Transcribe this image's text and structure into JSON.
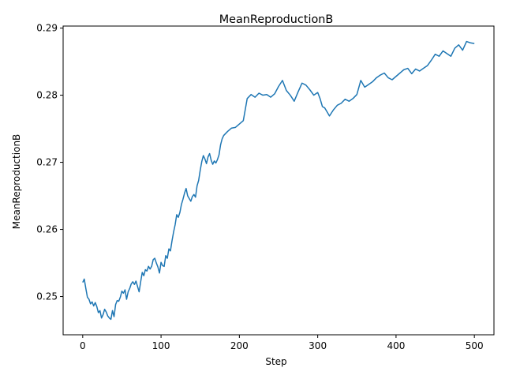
{
  "chart_data": {
    "type": "line",
    "title": "MeanReproductionB",
    "xlabel": "Step",
    "ylabel": "MeanReproductionB",
    "xlim": [
      -25,
      525
    ],
    "ylim": [
      0.2443,
      0.2903
    ],
    "xticks": [
      0,
      100,
      200,
      300,
      400,
      500
    ],
    "xtick_labels": [
      "0",
      "100",
      "200",
      "300",
      "400",
      "500"
    ],
    "yticks": [
      0.25,
      0.26,
      0.27,
      0.28,
      0.29
    ],
    "ytick_labels": [
      "0.25",
      "0.26",
      "0.27",
      "0.28",
      "0.29"
    ],
    "grid": false,
    "series": [
      {
        "color": "#1f77b4",
        "x": [
          0,
          2,
          4,
          6,
          8,
          10,
          12,
          14,
          16,
          18,
          20,
          22,
          24,
          26,
          28,
          30,
          32,
          34,
          36,
          38,
          40,
          42,
          44,
          46,
          48,
          50,
          52,
          54,
          56,
          58,
          60,
          62,
          64,
          66,
          68,
          70,
          72,
          74,
          76,
          78,
          80,
          82,
          84,
          86,
          88,
          90,
          92,
          94,
          96,
          98,
          100,
          102,
          104,
          106,
          108,
          110,
          112,
          114,
          116,
          118,
          120,
          122,
          124,
          126,
          128,
          130,
          132,
          134,
          136,
          138,
          140,
          142,
          144,
          146,
          148,
          150,
          152,
          154,
          156,
          158,
          160,
          162,
          164,
          166,
          168,
          170,
          172,
          174,
          176,
          178,
          180,
          185,
          190,
          195,
          200,
          205,
          210,
          215,
          220,
          225,
          230,
          235,
          240,
          245,
          250,
          255,
          260,
          265,
          270,
          275,
          280,
          285,
          290,
          295,
          300,
          303,
          306,
          309,
          312,
          315,
          320,
          325,
          330,
          335,
          340,
          345,
          350,
          355,
          360,
          365,
          370,
          375,
          380,
          385,
          390,
          395,
          400,
          405,
          410,
          415,
          420,
          425,
          430,
          435,
          440,
          445,
          450,
          455,
          460,
          465,
          470,
          475,
          480,
          485,
          490,
          495,
          500
        ],
        "values": [
          0.2521,
          0.2526,
          0.2512,
          0.2499,
          0.2496,
          0.2489,
          0.2492,
          0.2486,
          0.2491,
          0.2485,
          0.2476,
          0.2479,
          0.2468,
          0.2473,
          0.2481,
          0.2477,
          0.2471,
          0.2468,
          0.2466,
          0.2479,
          0.247,
          0.2488,
          0.2494,
          0.2493,
          0.2499,
          0.2508,
          0.2505,
          0.251,
          0.2496,
          0.2507,
          0.2512,
          0.2519,
          0.2522,
          0.2518,
          0.2523,
          0.2515,
          0.2507,
          0.2522,
          0.2536,
          0.2531,
          0.254,
          0.2538,
          0.2545,
          0.2541,
          0.2545,
          0.2555,
          0.2557,
          0.255,
          0.2544,
          0.2535,
          0.2551,
          0.2546,
          0.2545,
          0.2561,
          0.2557,
          0.2571,
          0.2568,
          0.2583,
          0.2596,
          0.2607,
          0.2622,
          0.2618,
          0.2625,
          0.2637,
          0.2645,
          0.2654,
          0.2661,
          0.265,
          0.2646,
          0.2642,
          0.2649,
          0.2652,
          0.2648,
          0.2665,
          0.2673,
          0.2688,
          0.2701,
          0.271,
          0.2705,
          0.2698,
          0.2708,
          0.2713,
          0.2703,
          0.2697,
          0.2702,
          0.2699,
          0.2704,
          0.2711,
          0.2726,
          0.2735,
          0.274,
          0.2746,
          0.2751,
          0.2752,
          0.2757,
          0.2762,
          0.2795,
          0.2801,
          0.2797,
          0.2803,
          0.28,
          0.2801,
          0.2797,
          0.2802,
          0.2813,
          0.2822,
          0.2807,
          0.28,
          0.2791,
          0.2805,
          0.2818,
          0.2815,
          0.2808,
          0.28,
          0.2804,
          0.2795,
          0.2783,
          0.2781,
          0.2775,
          0.2769,
          0.2778,
          0.2785,
          0.2788,
          0.2794,
          0.2791,
          0.2795,
          0.2801,
          0.2822,
          0.2812,
          0.2816,
          0.282,
          0.2826,
          0.283,
          0.2833,
          0.2826,
          0.2823,
          0.2828,
          0.2833,
          0.2838,
          0.284,
          0.2832,
          0.2839,
          0.2836,
          0.284,
          0.2844,
          0.2852,
          0.2861,
          0.2858,
          0.2866,
          0.2862,
          0.2858,
          0.287,
          0.2875,
          0.2867,
          0.288,
          0.2878,
          0.2877
        ]
      }
    ]
  }
}
